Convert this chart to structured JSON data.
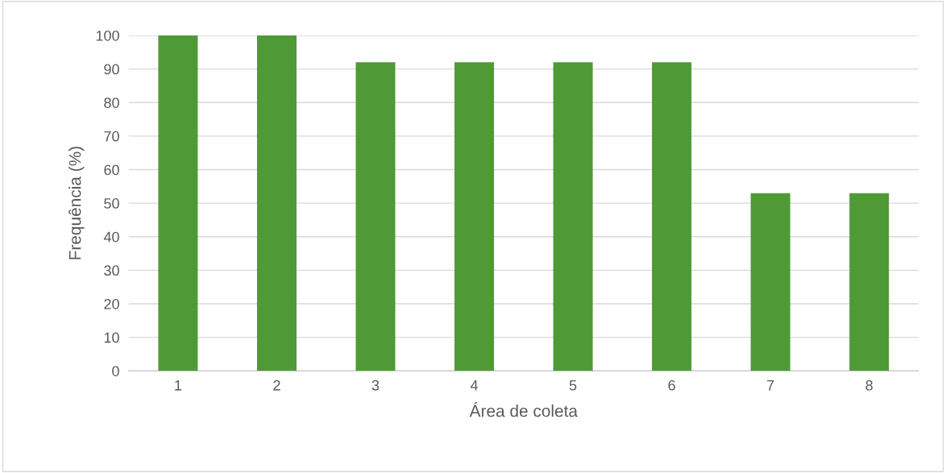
{
  "chart_data": {
    "type": "bar",
    "xlabel": "Área de coleta",
    "ylabel": "Frequência (%)",
    "categories": [
      "1",
      "2",
      "3",
      "4",
      "5",
      "6",
      "7",
      "8"
    ],
    "values": [
      100,
      100,
      92,
      92,
      92,
      92,
      53,
      53
    ],
    "color": "#4f9a37",
    "ylim": [
      0,
      100
    ],
    "yticks": [
      0,
      10,
      20,
      30,
      40,
      50,
      60,
      70,
      80,
      90,
      100
    ],
    "grid": "y"
  }
}
